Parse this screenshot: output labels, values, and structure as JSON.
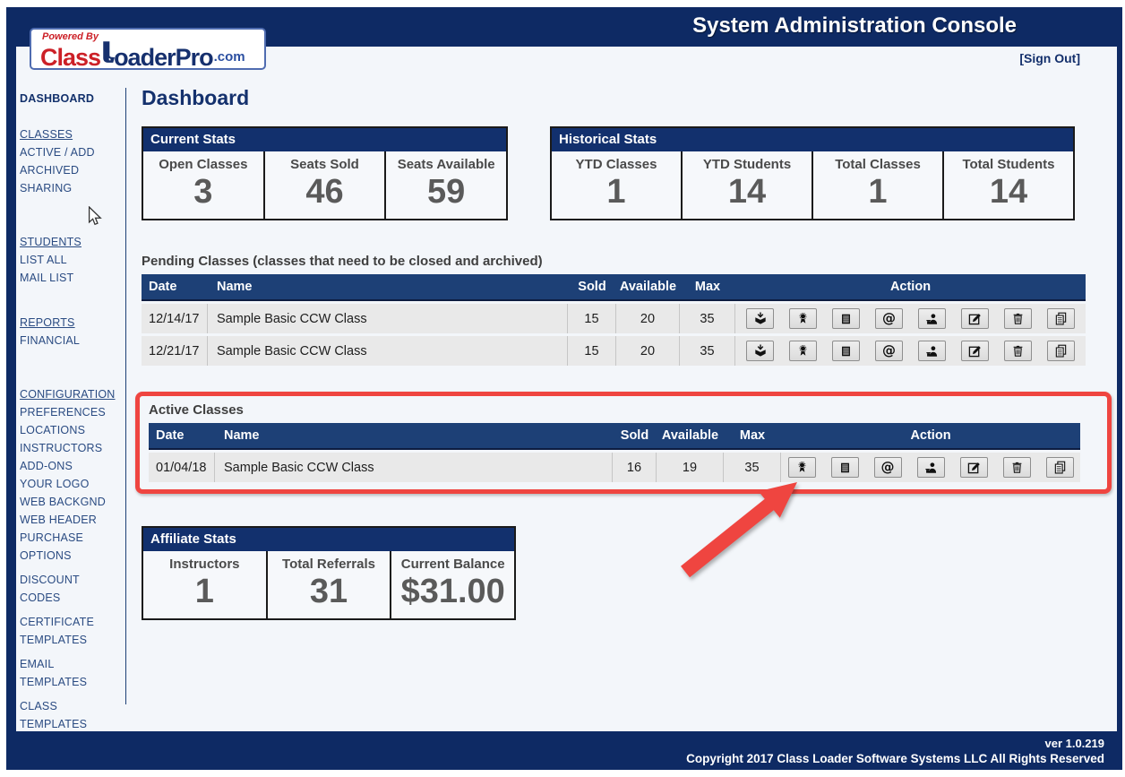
{
  "header": {
    "title": "System Administration Console",
    "sign_out": "[Sign Out]",
    "logo": {
      "powered_by": "Powered By",
      "part1": "Class",
      "part2": "oaderPro",
      "tld": ".com"
    }
  },
  "sidebar": {
    "items": [
      {
        "label": "DASHBOARD",
        "bold": true
      },
      {
        "label": "CLASSES",
        "underline": true,
        "gap": 20
      },
      {
        "label": "ACTIVE / ADD"
      },
      {
        "label": "ARCHIVED"
      },
      {
        "label": "SHARING"
      },
      {
        "label": "STUDENTS",
        "underline": true,
        "gap": 40
      },
      {
        "label": "LIST ALL"
      },
      {
        "label": "MAIL LIST"
      },
      {
        "label": "REPORTS",
        "underline": true,
        "gap": 30
      },
      {
        "label": "FINANCIAL"
      },
      {
        "label": "CONFIGURATION",
        "underline": true,
        "gap": 40
      },
      {
        "label": "PREFERENCES"
      },
      {
        "label": "LOCATIONS"
      },
      {
        "label": "INSTRUCTORS"
      },
      {
        "label": "ADD-ONS"
      },
      {
        "label": "YOUR LOGO"
      },
      {
        "label": "WEB BACKGND"
      },
      {
        "label": "WEB HEADER"
      },
      {
        "label": "PURCHASE OPTIONS",
        "twoline": true
      },
      {
        "label": "DISCOUNT CODES",
        "twoline": true
      },
      {
        "label": "CERTIFICATE TEMPLATES",
        "twoline": true
      },
      {
        "label": "EMAIL TEMPLATES",
        "twoline": true
      },
      {
        "label": "CLASS TEMPLATES",
        "twoline": true
      }
    ]
  },
  "page": {
    "title": "Dashboard"
  },
  "current_stats": {
    "title": "Current Stats",
    "columns": [
      {
        "label": "Open Classes",
        "value": "3"
      },
      {
        "label": "Seats Sold",
        "value": "46"
      },
      {
        "label": "Seats Available",
        "value": "59"
      }
    ]
  },
  "historical_stats": {
    "title": "Historical Stats",
    "columns": [
      {
        "label": "YTD Classes",
        "value": "1"
      },
      {
        "label": "YTD Students",
        "value": "14"
      },
      {
        "label": "Total Classes",
        "value": "1"
      },
      {
        "label": "Total Students",
        "value": "14"
      }
    ]
  },
  "pending": {
    "title": "Pending Classes (classes that need to be closed and archived)",
    "headers": {
      "date": "Date",
      "name": "Name",
      "sold": "Sold",
      "available": "Available",
      "max": "Max",
      "action": "Action"
    },
    "rows": [
      {
        "date": "12/14/17",
        "name": "Sample Basic CCW Class",
        "sold": "15",
        "available": "20",
        "max": "35",
        "actions": [
          "archive",
          "certificate",
          "roster",
          "email",
          "students",
          "edit",
          "delete",
          "copy"
        ]
      },
      {
        "date": "12/21/17",
        "name": "Sample Basic CCW Class",
        "sold": "15",
        "available": "20",
        "max": "35",
        "actions": [
          "archive",
          "certificate",
          "roster",
          "email",
          "students",
          "edit",
          "delete",
          "copy"
        ]
      }
    ]
  },
  "active": {
    "title": "Active Classes",
    "headers": {
      "date": "Date",
      "name": "Name",
      "sold": "Sold",
      "available": "Available",
      "max": "Max",
      "action": "Action"
    },
    "rows": [
      {
        "date": "01/04/18",
        "name": "Sample Basic CCW Class",
        "sold": "16",
        "available": "19",
        "max": "35",
        "actions": [
          "certificate",
          "roster",
          "email",
          "students",
          "edit",
          "delete",
          "copy"
        ]
      }
    ]
  },
  "affiliate_stats": {
    "title": "Affiliate Stats",
    "columns": [
      {
        "label": "Instructors",
        "value": "1"
      },
      {
        "label": "Total Referrals",
        "value": "31"
      },
      {
        "label": "Current Balance",
        "value": "$31.00"
      }
    ]
  },
  "footer": {
    "version": "ver 1.0.219",
    "copyright": "Copyright 2017 Class Loader Software Systems LLC All Rights Reserved"
  },
  "colors": {
    "chrome_navy": "#0e2a64",
    "table_header_navy": "#1d4076",
    "stats_header_navy": "#12306d",
    "highlight_red": "#ef4540",
    "row_gray": "#e9e9e9",
    "content_bg": "#f3f6fa"
  }
}
